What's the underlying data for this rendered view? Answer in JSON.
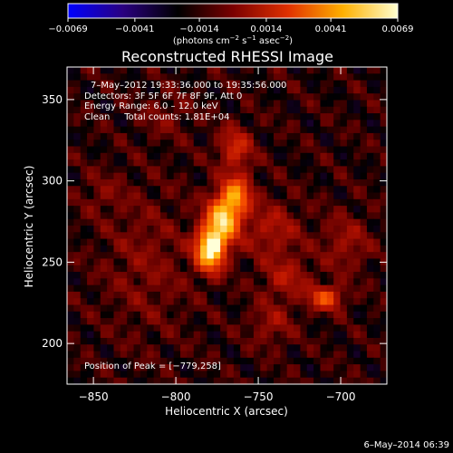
{
  "chart_data": {
    "type": "heatmap",
    "title": "Reconstructed RHESSI Image",
    "xlabel": "Heliocentric X (arcsec)",
    "ylabel": "Heliocentric Y (arcsec)",
    "xlim": [
      -866,
      -672
    ],
    "ylim": [
      175,
      370
    ],
    "x_ticks": [
      -850,
      -800,
      -750,
      -700
    ],
    "x_tick_labels": [
      "−850",
      "−800",
      "−750",
      "−700"
    ],
    "y_ticks": [
      200,
      250,
      300,
      350
    ],
    "y_tick_labels": [
      "200",
      "250",
      "300",
      "350"
    ],
    "colorbar": {
      "range": [
        -0.0069,
        0.0069
      ],
      "ticks": [
        -0.0069,
        -0.0041,
        -0.0014,
        0.0014,
        0.0041,
        0.0069
      ],
      "tick_labels": [
        "−0.0069",
        "−0.0041",
        "−0.0014",
        "0.0014",
        "0.0041",
        "0.0069"
      ],
      "units_parts": [
        "(photons cm",
        "−2",
        " s",
        "−1",
        " asec",
        "−2",
        ")"
      ],
      "colormap": [
        "#0000ff",
        "#2a0080",
        "#000000",
        "#7a0000",
        "#e03000",
        "#ffb000",
        "#ffffd0"
      ]
    },
    "annotations": {
      "time_range": "7–May–2012 19:33:36.000 to 19:35:56.000",
      "detectors": "Detectors: 3F 5F 6F 7F 8F 9F, Att 0",
      "energy_range": "Energy Range: 6.0 – 12.0 keV",
      "method": "Clean     Total counts: 1.81E+04",
      "peak": "Position of Peak = [−779,258]"
    },
    "sources": [
      {
        "x": -779,
        "y": 258,
        "sx": 6,
        "sy": 9,
        "amp": 1.0
      },
      {
        "x": -771,
        "y": 277,
        "sx": 7,
        "sy": 10,
        "amp": 0.8
      },
      {
        "x": -763,
        "y": 292,
        "sx": 6,
        "sy": 8,
        "amp": 0.55
      },
      {
        "x": -764,
        "y": 320,
        "sx": 7,
        "sy": 9,
        "amp": 0.33
      },
      {
        "x": -709,
        "y": 228,
        "sx": 7,
        "sy": 5,
        "amp": 0.48
      },
      {
        "x": -742,
        "y": 270,
        "sx": 12,
        "sy": 12,
        "amp": 0.22
      },
      {
        "x": -733,
        "y": 240,
        "sx": 10,
        "sy": 9,
        "amp": 0.22
      },
      {
        "x": -697,
        "y": 262,
        "sx": 10,
        "sy": 12,
        "amp": 0.18
      },
      {
        "x": -742,
        "y": 212,
        "sx": 9,
        "sy": 9,
        "amp": 0.17
      },
      {
        "x": -818,
        "y": 250,
        "sx": 18,
        "sy": 30,
        "amp": 0.12
      },
      {
        "x": -845,
        "y": 292,
        "sx": 9,
        "sy": 9,
        "amp": 0.1
      },
      {
        "x": -806,
        "y": 340,
        "sx": 11,
        "sy": 9,
        "amp": 0.11
      }
    ]
  },
  "footer": {
    "date": "6–May–2014 06:39"
  }
}
